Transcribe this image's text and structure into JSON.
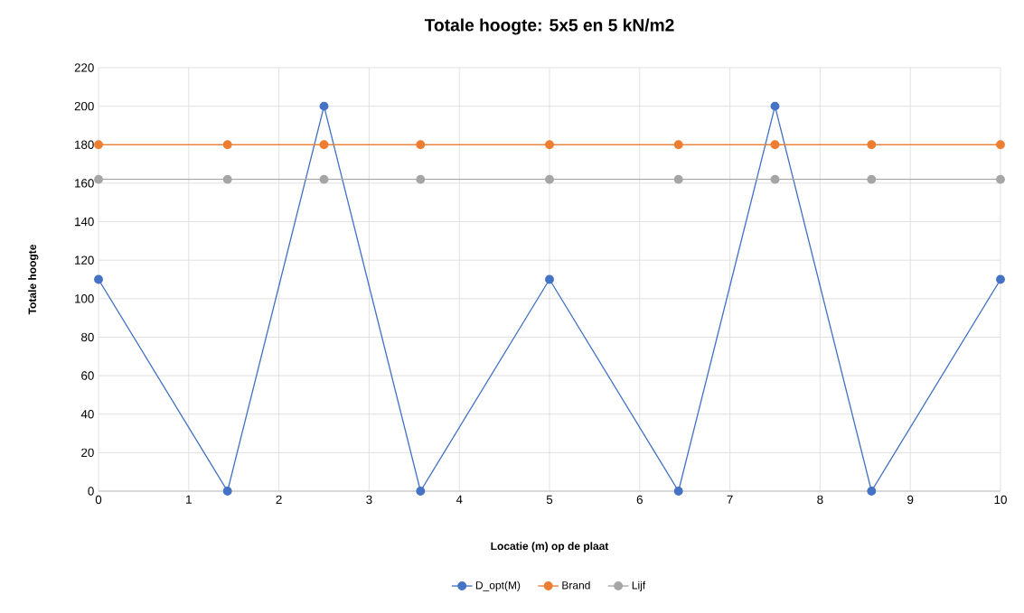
{
  "chart_data": {
    "type": "line",
    "title": "Totale hoogte: 5x5 en 5 kN/m2",
    "xlabel": "Locatie (m) op de plaat",
    "ylabel": "Totale hoogte",
    "x": [
      0,
      1.43,
      2.5,
      3.57,
      5,
      6.43,
      7.5,
      8.57,
      10
    ],
    "series": [
      {
        "name": "D_opt(M)",
        "color": "#4472c4",
        "values": [
          110,
          0,
          200,
          0,
          110,
          0,
          200,
          0,
          110
        ]
      },
      {
        "name": "Brand",
        "color": "#ed7d31",
        "values": [
          180,
          180,
          180,
          180,
          180,
          180,
          180,
          180,
          180
        ]
      },
      {
        "name": "Lijf",
        "color": "#a5a5a5",
        "values": [
          162,
          162,
          162,
          162,
          162,
          162,
          162,
          162,
          162
        ]
      }
    ],
    "xlim": [
      0,
      10
    ],
    "ylim": [
      0,
      220
    ],
    "xticks": [
      0,
      1,
      2,
      3,
      4,
      5,
      6,
      7,
      8,
      9,
      10
    ],
    "yticks": [
      0,
      20,
      40,
      60,
      80,
      100,
      120,
      140,
      160,
      180,
      200,
      220
    ],
    "grid": true,
    "legend": "bottom",
    "marker": "circle"
  }
}
